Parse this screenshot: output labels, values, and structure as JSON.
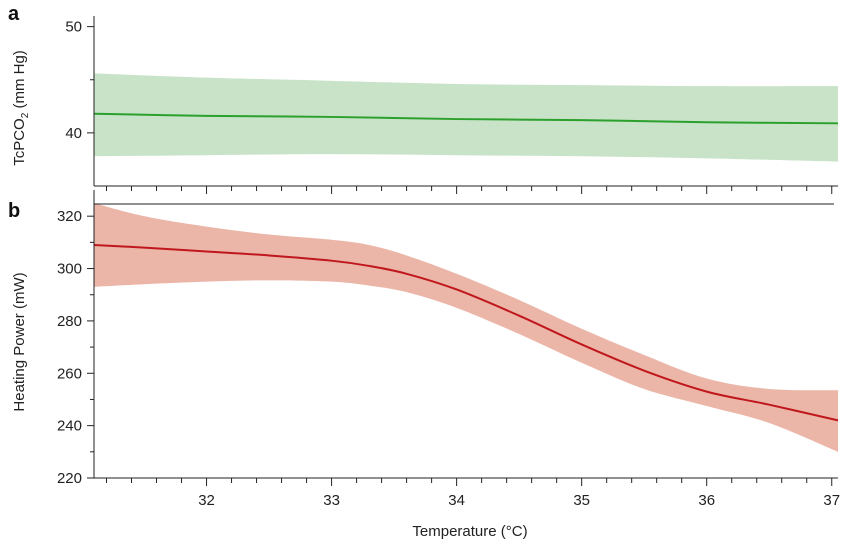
{
  "chart_data": [
    {
      "type": "area",
      "panel_letter": "a",
      "ylabel_main": "TcPCO",
      "ylabel_sub": "2",
      "ylabel_unit": " (mm Hg)",
      "xlim": [
        31.1,
        37.05
      ],
      "ylim": [
        35,
        51
      ],
      "yticks_major": [
        40,
        50
      ],
      "yticks_minor": [
        45
      ],
      "x_ticks_major": [
        32,
        33,
        34,
        35,
        36,
        37
      ],
      "line_color": "#2ca02c",
      "band_color": "#c8e3c8",
      "series": [
        {
          "x": [
            31.1,
            32,
            33,
            34,
            35,
            36,
            37.05
          ],
          "mean": [
            41.8,
            41.6,
            41.5,
            41.3,
            41.2,
            41.0,
            40.9
          ],
          "upper": [
            45.6,
            45.2,
            44.9,
            44.6,
            44.5,
            44.4,
            44.4
          ],
          "lower": [
            37.8,
            37.9,
            38.0,
            37.9,
            37.8,
            37.6,
            37.3
          ]
        }
      ]
    },
    {
      "type": "area",
      "panel_letter": "b",
      "ylabel": "Heating Power (mW)",
      "xlabel": "Temperature (°C)",
      "xlim": [
        31.1,
        37.05
      ],
      "ylim": [
        220,
        330
      ],
      "yticks": [
        220,
        240,
        260,
        280,
        300,
        320
      ],
      "x_ticks_major": [
        32,
        33,
        34,
        35,
        36,
        37
      ],
      "x_tick_labels": [
        "32",
        "33",
        "34",
        "35",
        "36",
        "37"
      ],
      "line_color": "#c0171d",
      "band_color": "#ebb5a7",
      "series": [
        {
          "x": [
            31.1,
            31.5,
            32,
            32.5,
            33,
            33.3,
            33.6,
            34,
            34.5,
            35,
            35.5,
            36,
            36.5,
            37.05
          ],
          "mean": [
            309,
            308,
            306.5,
            305,
            303,
            301,
            298,
            292,
            282,
            271,
            261,
            253,
            248,
            242
          ],
          "upper": [
            325,
            320,
            316,
            313,
            311,
            309,
            305,
            298,
            288,
            277,
            267,
            258,
            254,
            253.5
          ],
          "lower": [
            293,
            294,
            295,
            295.5,
            295,
            293.5,
            291,
            285,
            275,
            264,
            254,
            247.5,
            241,
            230
          ]
        }
      ]
    }
  ]
}
